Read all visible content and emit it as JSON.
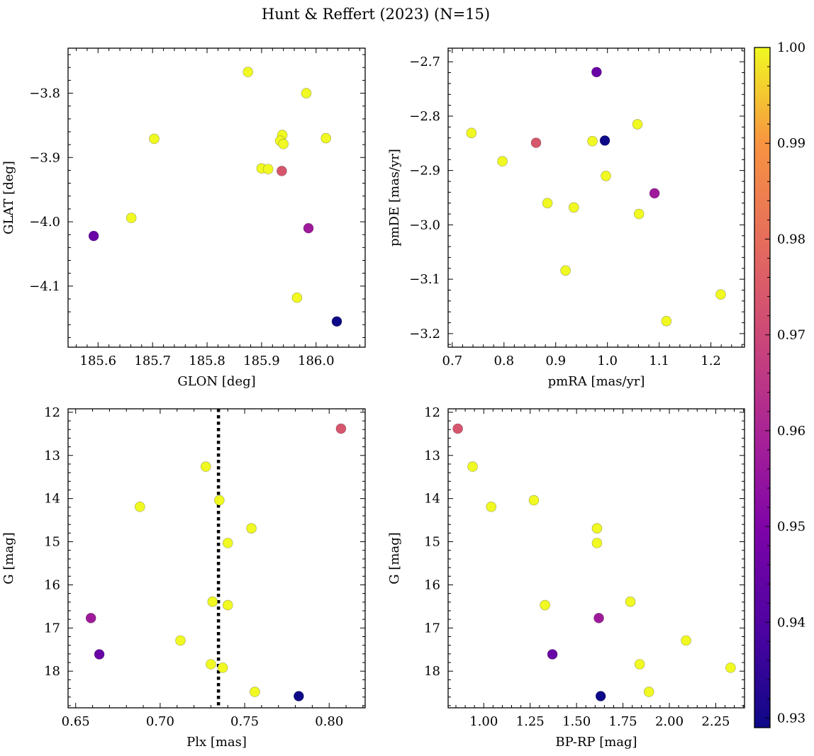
{
  "figure": {
    "title": "Hunt & Reffert (2023) (N=15)"
  },
  "colorbar": {
    "ticks": [
      "0.93",
      "0.94",
      "0.95",
      "0.96",
      "0.97",
      "0.98",
      "0.99",
      "1.00"
    ],
    "range": [
      0.929,
      1.0
    ],
    "colormap": "plasma"
  },
  "chart_data": [
    {
      "type": "scatter",
      "panel": "top-left",
      "xlabel": "GLON [deg]",
      "ylabel": "GLAT [deg]",
      "xlim": [
        185.545,
        186.09
      ],
      "ylim": [
        -4.195,
        -3.73
      ],
      "y_inverted": false,
      "xticks": [
        "185.6",
        "185.7",
        "185.8",
        "185.9",
        "186.0"
      ],
      "yticks": [
        "−3.8",
        "−3.9",
        "−4.0",
        "−4.1"
      ],
      "points": [
        {
          "x": 185.875,
          "y": -3.767,
          "c": 1.0
        },
        {
          "x": 185.982,
          "y": -3.8,
          "c": 1.0
        },
        {
          "x": 185.703,
          "y": -3.871,
          "c": 1.0
        },
        {
          "x": 185.938,
          "y": -3.865,
          "c": 1.0
        },
        {
          "x": 185.934,
          "y": -3.874,
          "c": 1.0
        },
        {
          "x": 185.94,
          "y": -3.879,
          "c": 1.0
        },
        {
          "x": 186.018,
          "y": -3.87,
          "c": 1.0
        },
        {
          "x": 185.9,
          "y": -3.917,
          "c": 1.0
        },
        {
          "x": 185.912,
          "y": -3.918,
          "c": 1.0
        },
        {
          "x": 185.937,
          "y": -3.921,
          "c": 0.974
        },
        {
          "x": 185.661,
          "y": -3.994,
          "c": 1.0
        },
        {
          "x": 185.592,
          "y": -4.022,
          "c": 0.945
        },
        {
          "x": 185.986,
          "y": -4.01,
          "c": 0.957
        },
        {
          "x": 185.965,
          "y": -4.118,
          "c": 1.0
        },
        {
          "x": 186.038,
          "y": -4.155,
          "c": 0.929
        }
      ]
    },
    {
      "type": "scatter",
      "panel": "top-right",
      "xlabel": "pmRA [mas/yr]",
      "ylabel": "pmDE [mas/yr]",
      "xlim": [
        0.692,
        1.265
      ],
      "ylim": [
        -3.225,
        -2.675
      ],
      "y_inverted": false,
      "xticks": [
        "0.7",
        "0.8",
        "0.9",
        "1.0",
        "1.1",
        "1.2"
      ],
      "yticks": [
        "−2.7",
        "−2.8",
        "−2.9",
        "−3.0",
        "−3.1",
        "−3.2"
      ],
      "points": [
        {
          "x": 0.979,
          "y": -2.719,
          "c": 0.945
        },
        {
          "x": 0.737,
          "y": -2.831,
          "c": 1.0
        },
        {
          "x": 1.058,
          "y": -2.815,
          "c": 1.0
        },
        {
          "x": 0.971,
          "y": -2.846,
          "c": 1.0
        },
        {
          "x": 0.995,
          "y": -2.845,
          "c": 0.929
        },
        {
          "x": 0.862,
          "y": -2.849,
          "c": 0.974
        },
        {
          "x": 0.797,
          "y": -2.883,
          "c": 1.0
        },
        {
          "x": 0.997,
          "y": -2.91,
          "c": 1.0
        },
        {
          "x": 1.091,
          "y": -2.942,
          "c": 0.957
        },
        {
          "x": 0.884,
          "y": -2.96,
          "c": 1.0
        },
        {
          "x": 0.935,
          "y": -2.968,
          "c": 1.0
        },
        {
          "x": 1.061,
          "y": -2.98,
          "c": 1.0
        },
        {
          "x": 0.919,
          "y": -3.084,
          "c": 1.0
        },
        {
          "x": 1.219,
          "y": -3.128,
          "c": 1.0
        },
        {
          "x": 1.114,
          "y": -3.177,
          "c": 1.0
        }
      ]
    },
    {
      "type": "scatter",
      "panel": "bottom-left",
      "xlabel": "Plx [mas]",
      "ylabel": "G [mag]",
      "xlim": [
        0.6455,
        0.8213
      ],
      "ylim": [
        11.92,
        18.85
      ],
      "y_inverted": true,
      "xticks": [
        "0.65",
        "0.70",
        "0.75",
        "0.80"
      ],
      "yticks": [
        "12",
        "13",
        "14",
        "15",
        "16",
        "17",
        "18"
      ],
      "vline": {
        "x": 0.7345,
        "style": "dotted"
      },
      "points": [
        {
          "x": 0.807,
          "y": 12.38,
          "c": 0.974
        },
        {
          "x": 0.727,
          "y": 13.26,
          "c": 1.0
        },
        {
          "x": 0.735,
          "y": 14.04,
          "c": 1.0
        },
        {
          "x": 0.688,
          "y": 14.19,
          "c": 1.0
        },
        {
          "x": 0.754,
          "y": 14.69,
          "c": 1.0
        },
        {
          "x": 0.74,
          "y": 15.03,
          "c": 1.0
        },
        {
          "x": 0.731,
          "y": 16.39,
          "c": 1.0
        },
        {
          "x": 0.74,
          "y": 16.47,
          "c": 1.0
        },
        {
          "x": 0.659,
          "y": 16.77,
          "c": 0.957
        },
        {
          "x": 0.712,
          "y": 17.29,
          "c": 1.0
        },
        {
          "x": 0.664,
          "y": 17.61,
          "c": 0.945
        },
        {
          "x": 0.73,
          "y": 17.84,
          "c": 1.0
        },
        {
          "x": 0.737,
          "y": 17.92,
          "c": 1.0
        },
        {
          "x": 0.756,
          "y": 18.48,
          "c": 1.0
        },
        {
          "x": 0.782,
          "y": 18.58,
          "c": 0.929
        }
      ]
    },
    {
      "type": "scatter",
      "panel": "bottom-right",
      "xlabel": "BP-RP [mag]",
      "ylabel": "G [mag]",
      "xlim": [
        0.808,
        2.405
      ],
      "ylim": [
        11.92,
        18.85
      ],
      "y_inverted": true,
      "xticks": [
        "1.00",
        "1.25",
        "1.50",
        "1.75",
        "2.00",
        "2.25"
      ],
      "yticks": [
        "12",
        "13",
        "14",
        "15",
        "16",
        "17",
        "18"
      ],
      "points": [
        {
          "x": 0.86,
          "y": 12.38,
          "c": 0.974
        },
        {
          "x": 0.94,
          "y": 13.26,
          "c": 1.0
        },
        {
          "x": 1.04,
          "y": 14.19,
          "c": 1.0
        },
        {
          "x": 1.27,
          "y": 14.04,
          "c": 1.0
        },
        {
          "x": 1.61,
          "y": 14.69,
          "c": 1.0
        },
        {
          "x": 1.61,
          "y": 15.03,
          "c": 1.0
        },
        {
          "x": 1.33,
          "y": 16.47,
          "c": 1.0
        },
        {
          "x": 1.79,
          "y": 16.39,
          "c": 1.0
        },
        {
          "x": 1.62,
          "y": 16.77,
          "c": 0.957
        },
        {
          "x": 2.09,
          "y": 17.29,
          "c": 1.0
        },
        {
          "x": 1.37,
          "y": 17.61,
          "c": 0.945
        },
        {
          "x": 1.84,
          "y": 17.84,
          "c": 1.0
        },
        {
          "x": 2.33,
          "y": 17.92,
          "c": 1.0
        },
        {
          "x": 1.89,
          "y": 18.48,
          "c": 1.0
        },
        {
          "x": 1.63,
          "y": 18.58,
          "c": 0.929
        }
      ]
    }
  ]
}
